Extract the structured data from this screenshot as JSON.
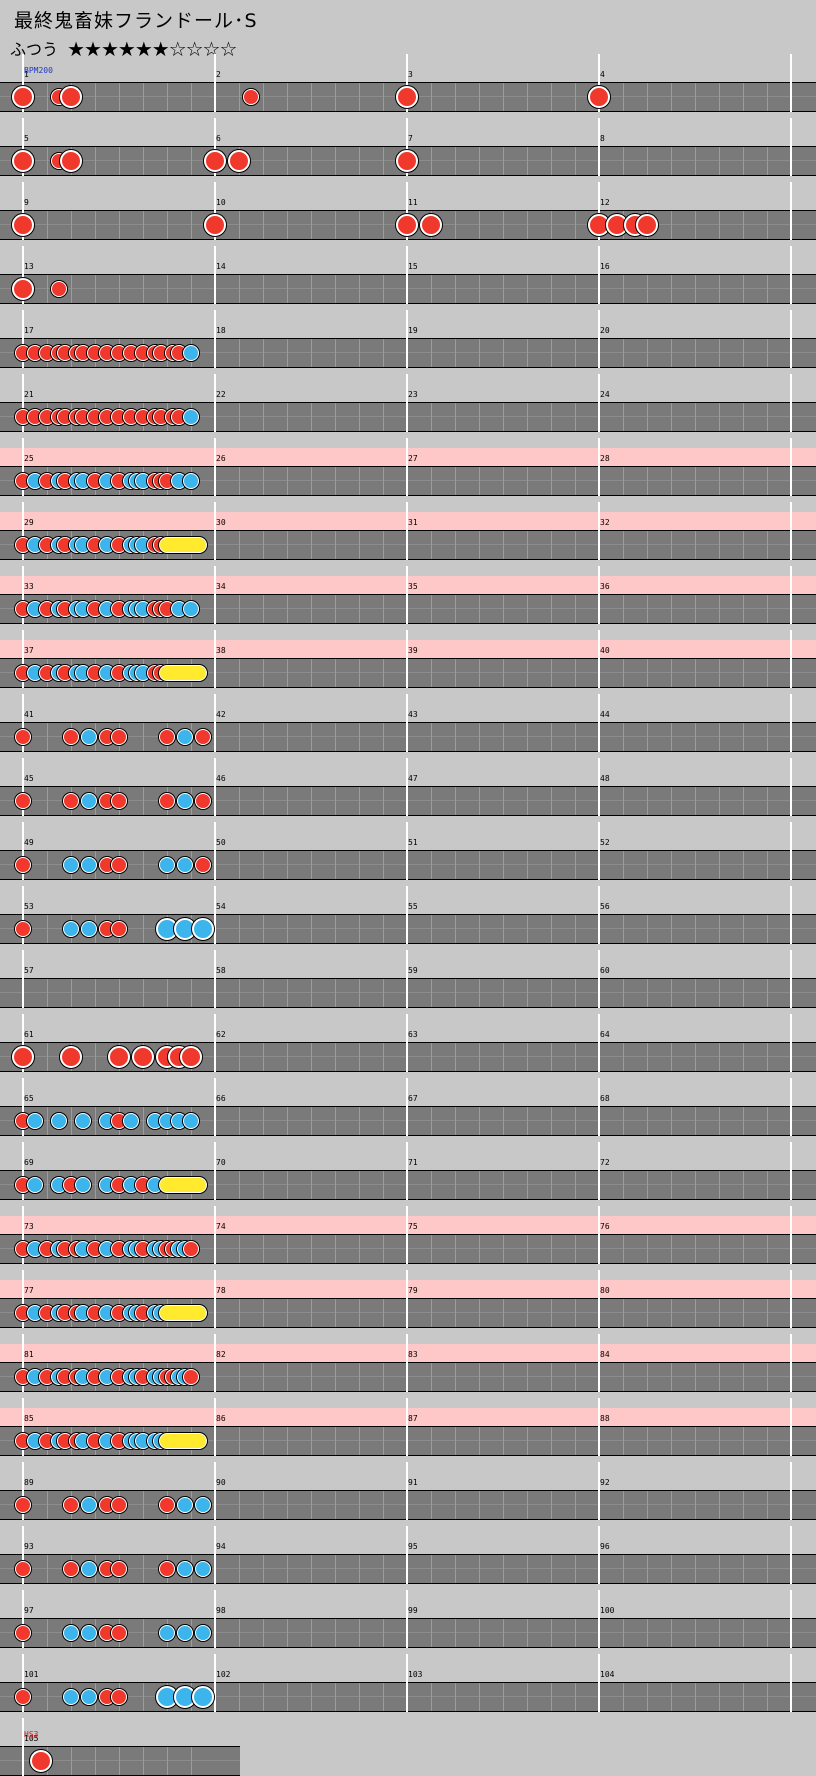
{
  "title": "最終鬼畜妹フランドール･S",
  "difficulty": {
    "label": "ふつう",
    "stars": "★★★★★★☆☆☆☆"
  },
  "markers": [
    {
      "measure": 1,
      "text": "BPM200",
      "color": "#2038c8"
    },
    {
      "measure": 105,
      "text": "HS3",
      "color": "#d02020"
    }
  ],
  "note_colors": {
    "don": "#f0382c",
    "ka": "#3cb4ec",
    "roll": "#ffea2e",
    "highlight": "#ffc8c8",
    "lane": "#7a7a7a"
  },
  "measures": {
    "1": [
      [
        0,
        "D"
      ],
      [
        18,
        "d"
      ],
      [
        24,
        "D"
      ]
    ],
    "2": [
      [
        18,
        "d"
      ]
    ],
    "3": [
      [
        0,
        "D"
      ]
    ],
    "4": [
      [
        0,
        "D"
      ]
    ],
    "5": [
      [
        0,
        "D"
      ],
      [
        18,
        "d"
      ],
      [
        24,
        "D"
      ]
    ],
    "6": [
      [
        0,
        "D"
      ],
      [
        12,
        "D"
      ]
    ],
    "7": [
      [
        0,
        "D"
      ]
    ],
    "9": [
      [
        0,
        "D"
      ]
    ],
    "10": [
      [
        0,
        "D"
      ]
    ],
    "11": [
      [
        0,
        "D"
      ],
      [
        12,
        "D"
      ]
    ],
    "12": [
      [
        0,
        "D"
      ],
      [
        9,
        "D"
      ],
      [
        18,
        "D"
      ],
      [
        24,
        "D"
      ]
    ],
    "13": [
      [
        0,
        "D"
      ],
      [
        18,
        "d"
      ]
    ],
    "17": [
      [
        0,
        "d"
      ],
      [
        6,
        "d"
      ],
      [
        12,
        "d"
      ],
      [
        18,
        "d"
      ],
      [
        21,
        "d"
      ],
      [
        27,
        "d"
      ],
      [
        30,
        "d"
      ],
      [
        36,
        "d"
      ],
      [
        42,
        "d"
      ],
      [
        48,
        "d"
      ],
      [
        54,
        "d"
      ],
      [
        60,
        "d"
      ],
      [
        66,
        "d"
      ],
      [
        69,
        "d"
      ],
      [
        75,
        "d"
      ],
      [
        78,
        "d"
      ],
      [
        84,
        "k"
      ]
    ],
    "21": [
      [
        0,
        "d"
      ],
      [
        6,
        "d"
      ],
      [
        12,
        "d"
      ],
      [
        18,
        "d"
      ],
      [
        21,
        "d"
      ],
      [
        27,
        "d"
      ],
      [
        30,
        "d"
      ],
      [
        36,
        "d"
      ],
      [
        42,
        "d"
      ],
      [
        48,
        "d"
      ],
      [
        54,
        "d"
      ],
      [
        60,
        "d"
      ],
      [
        66,
        "d"
      ],
      [
        69,
        "d"
      ],
      [
        75,
        "d"
      ],
      [
        78,
        "d"
      ],
      [
        84,
        "k"
      ]
    ],
    "25": [
      [
        0,
        "d"
      ],
      [
        6,
        "k"
      ],
      [
        12,
        "d"
      ],
      [
        18,
        "k"
      ],
      [
        21,
        "d"
      ],
      [
        27,
        "k"
      ],
      [
        30,
        "k"
      ],
      [
        36,
        "d"
      ],
      [
        42,
        "k"
      ],
      [
        48,
        "d"
      ],
      [
        54,
        "k"
      ],
      [
        57,
        "k"
      ],
      [
        60,
        "k"
      ],
      [
        66,
        "d"
      ],
      [
        69,
        "d"
      ],
      [
        72,
        "d"
      ],
      [
        78,
        "k"
      ],
      [
        84,
        "k"
      ]
    ],
    "29": [
      [
        0,
        "d"
      ],
      [
        6,
        "k"
      ],
      [
        12,
        "d"
      ],
      [
        18,
        "k"
      ],
      [
        21,
        "d"
      ],
      [
        27,
        "k"
      ],
      [
        30,
        "k"
      ],
      [
        36,
        "d"
      ],
      [
        42,
        "k"
      ],
      [
        48,
        "d"
      ],
      [
        54,
        "k"
      ],
      [
        57,
        "k"
      ],
      [
        60,
        "k"
      ],
      [
        66,
        "d"
      ],
      [
        69,
        "d"
      ],
      [
        72,
        "R",
        88
      ]
    ],
    "33": [
      [
        0,
        "d"
      ],
      [
        6,
        "k"
      ],
      [
        12,
        "d"
      ],
      [
        18,
        "k"
      ],
      [
        21,
        "d"
      ],
      [
        27,
        "k"
      ],
      [
        30,
        "k"
      ],
      [
        36,
        "d"
      ],
      [
        42,
        "k"
      ],
      [
        48,
        "d"
      ],
      [
        54,
        "k"
      ],
      [
        57,
        "k"
      ],
      [
        60,
        "k"
      ],
      [
        66,
        "d"
      ],
      [
        69,
        "d"
      ],
      [
        72,
        "d"
      ],
      [
        78,
        "k"
      ],
      [
        84,
        "k"
      ]
    ],
    "37": [
      [
        0,
        "d"
      ],
      [
        6,
        "k"
      ],
      [
        12,
        "d"
      ],
      [
        18,
        "k"
      ],
      [
        21,
        "d"
      ],
      [
        27,
        "k"
      ],
      [
        30,
        "k"
      ],
      [
        36,
        "d"
      ],
      [
        42,
        "k"
      ],
      [
        48,
        "d"
      ],
      [
        54,
        "k"
      ],
      [
        57,
        "k"
      ],
      [
        60,
        "k"
      ],
      [
        66,
        "d"
      ],
      [
        69,
        "d"
      ],
      [
        72,
        "R",
        88
      ]
    ],
    "41": [
      [
        0,
        "d"
      ],
      [
        24,
        "d"
      ],
      [
        33,
        "k"
      ],
      [
        42,
        "d"
      ],
      [
        48,
        "d"
      ],
      [
        72,
        "d"
      ],
      [
        81,
        "k"
      ],
      [
        90,
        "d"
      ]
    ],
    "45": [
      [
        0,
        "d"
      ],
      [
        24,
        "d"
      ],
      [
        33,
        "k"
      ],
      [
        42,
        "d"
      ],
      [
        48,
        "d"
      ],
      [
        72,
        "d"
      ],
      [
        81,
        "k"
      ],
      [
        90,
        "d"
      ]
    ],
    "49": [
      [
        0,
        "d"
      ],
      [
        24,
        "k"
      ],
      [
        33,
        "k"
      ],
      [
        42,
        "d"
      ],
      [
        48,
        "d"
      ],
      [
        72,
        "k"
      ],
      [
        81,
        "k"
      ],
      [
        90,
        "d"
      ]
    ],
    "53": [
      [
        0,
        "d"
      ],
      [
        24,
        "k"
      ],
      [
        33,
        "k"
      ],
      [
        42,
        "d"
      ],
      [
        48,
        "d"
      ],
      [
        72,
        "K"
      ],
      [
        81,
        "K"
      ],
      [
        90,
        "K"
      ]
    ],
    "61": [
      [
        0,
        "D"
      ],
      [
        24,
        "D"
      ],
      [
        48,
        "D"
      ],
      [
        60,
        "D"
      ],
      [
        72,
        "D"
      ],
      [
        78,
        "D"
      ],
      [
        84,
        "D"
      ]
    ],
    "65": [
      [
        0,
        "d"
      ],
      [
        6,
        "k"
      ],
      [
        18,
        "k"
      ],
      [
        30,
        "k"
      ],
      [
        42,
        "k"
      ],
      [
        48,
        "d"
      ],
      [
        54,
        "k"
      ],
      [
        66,
        "k"
      ],
      [
        72,
        "k"
      ],
      [
        78,
        "k"
      ],
      [
        84,
        "k"
      ]
    ],
    "69": [
      [
        0,
        "d"
      ],
      [
        6,
        "k"
      ],
      [
        18,
        "k"
      ],
      [
        24,
        "d"
      ],
      [
        30,
        "k"
      ],
      [
        42,
        "k"
      ],
      [
        48,
        "d"
      ],
      [
        54,
        "k"
      ],
      [
        60,
        "d"
      ],
      [
        66,
        "k"
      ],
      [
        72,
        "R",
        88
      ]
    ],
    "73": [
      [
        0,
        "d"
      ],
      [
        6,
        "k"
      ],
      [
        12,
        "d"
      ],
      [
        18,
        "k"
      ],
      [
        21,
        "d"
      ],
      [
        27,
        "d"
      ],
      [
        30,
        "k"
      ],
      [
        36,
        "d"
      ],
      [
        42,
        "k"
      ],
      [
        48,
        "d"
      ],
      [
        54,
        "k"
      ],
      [
        57,
        "k"
      ],
      [
        60,
        "d"
      ],
      [
        66,
        "k"
      ],
      [
        69,
        "k"
      ],
      [
        72,
        "d"
      ],
      [
        75,
        "d"
      ],
      [
        78,
        "k"
      ],
      [
        81,
        "k"
      ],
      [
        84,
        "d"
      ]
    ],
    "77": [
      [
        0,
        "d"
      ],
      [
        6,
        "k"
      ],
      [
        12,
        "d"
      ],
      [
        18,
        "k"
      ],
      [
        21,
        "d"
      ],
      [
        27,
        "d"
      ],
      [
        30,
        "k"
      ],
      [
        36,
        "d"
      ],
      [
        42,
        "k"
      ],
      [
        48,
        "d"
      ],
      [
        54,
        "k"
      ],
      [
        57,
        "k"
      ],
      [
        60,
        "d"
      ],
      [
        66,
        "k"
      ],
      [
        69,
        "k"
      ],
      [
        72,
        "R",
        88
      ]
    ],
    "81": [
      [
        0,
        "d"
      ],
      [
        6,
        "k"
      ],
      [
        12,
        "d"
      ],
      [
        18,
        "k"
      ],
      [
        21,
        "d"
      ],
      [
        27,
        "d"
      ],
      [
        30,
        "k"
      ],
      [
        36,
        "d"
      ],
      [
        42,
        "k"
      ],
      [
        48,
        "d"
      ],
      [
        54,
        "k"
      ],
      [
        57,
        "k"
      ],
      [
        60,
        "d"
      ],
      [
        66,
        "k"
      ],
      [
        69,
        "k"
      ],
      [
        72,
        "d"
      ],
      [
        75,
        "d"
      ],
      [
        78,
        "k"
      ],
      [
        81,
        "k"
      ],
      [
        84,
        "d"
      ]
    ],
    "85": [
      [
        0,
        "d"
      ],
      [
        6,
        "k"
      ],
      [
        12,
        "d"
      ],
      [
        18,
        "k"
      ],
      [
        21,
        "d"
      ],
      [
        27,
        "d"
      ],
      [
        30,
        "k"
      ],
      [
        36,
        "d"
      ],
      [
        42,
        "k"
      ],
      [
        48,
        "d"
      ],
      [
        54,
        "k"
      ],
      [
        57,
        "k"
      ],
      [
        60,
        "k"
      ],
      [
        66,
        "k"
      ],
      [
        69,
        "k"
      ],
      [
        72,
        "R",
        88
      ]
    ],
    "89": [
      [
        0,
        "d"
      ],
      [
        24,
        "d"
      ],
      [
        33,
        "k"
      ],
      [
        42,
        "d"
      ],
      [
        48,
        "d"
      ],
      [
        72,
        "d"
      ],
      [
        81,
        "k"
      ],
      [
        90,
        "k"
      ]
    ],
    "93": [
      [
        0,
        "d"
      ],
      [
        24,
        "d"
      ],
      [
        33,
        "k"
      ],
      [
        42,
        "d"
      ],
      [
        48,
        "d"
      ],
      [
        72,
        "d"
      ],
      [
        81,
        "k"
      ],
      [
        90,
        "k"
      ]
    ],
    "97": [
      [
        0,
        "d"
      ],
      [
        24,
        "k"
      ],
      [
        33,
        "k"
      ],
      [
        42,
        "d"
      ],
      [
        48,
        "d"
      ],
      [
        72,
        "k"
      ],
      [
        81,
        "k"
      ],
      [
        90,
        "k"
      ]
    ],
    "101": [
      [
        0,
        "d"
      ],
      [
        24,
        "k"
      ],
      [
        33,
        "k"
      ],
      [
        42,
        "d"
      ],
      [
        48,
        "d"
      ],
      [
        72,
        "K"
      ],
      [
        81,
        "K"
      ],
      [
        90,
        "K"
      ]
    ],
    "105": [
      [
        9,
        "D"
      ]
    ]
  },
  "highlighted_rows": [
    7,
    8,
    9,
    10,
    19,
    20,
    21,
    22
  ]
}
